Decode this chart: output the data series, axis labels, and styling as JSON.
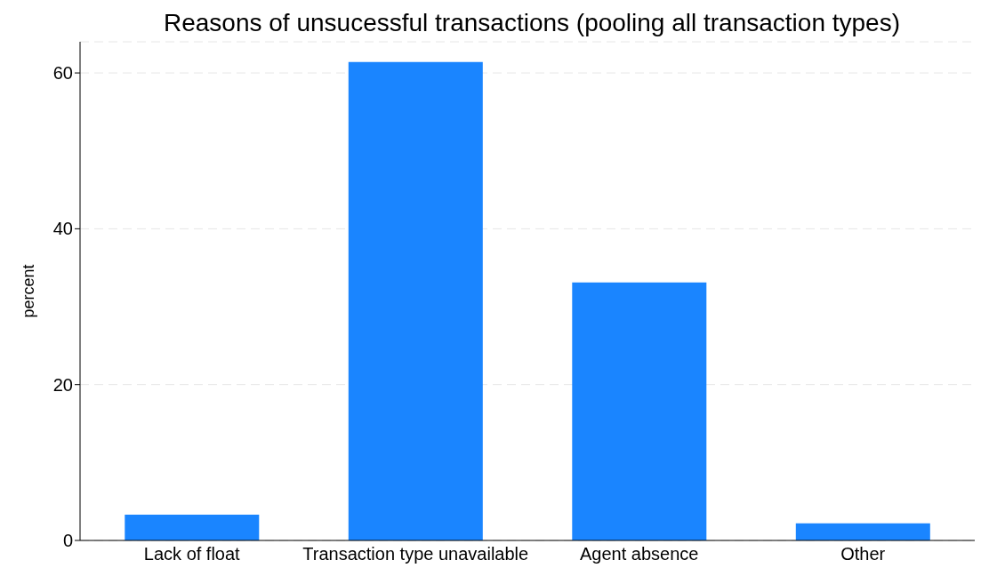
{
  "chart_data": {
    "type": "bar",
    "title": "Reasons of unsucessful transactions (pooling all transaction types)",
    "categories": [
      "Lack of float",
      "Transaction type unavailable",
      "Agent absence",
      "Other"
    ],
    "values": [
      3.3,
      61.4,
      33.1,
      2.2
    ],
    "color": "#1a85ff",
    "ylabel": "percent",
    "ylim": [
      0,
      64
    ],
    "yticks": [
      0,
      20,
      40,
      60
    ],
    "grid": "y"
  }
}
